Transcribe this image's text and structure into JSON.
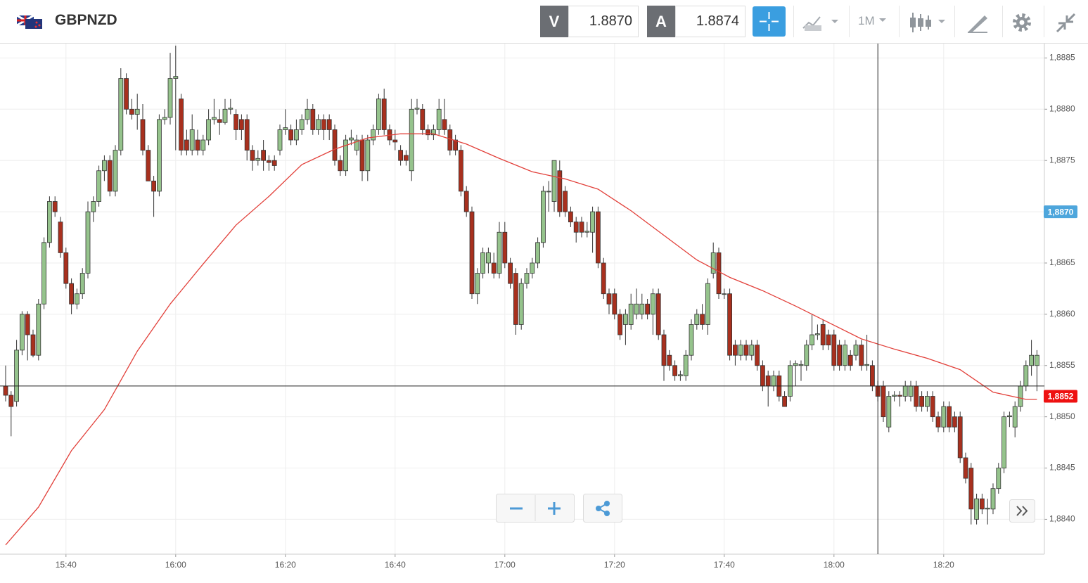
{
  "toolbar": {
    "symbol": "GBPNZD",
    "bid_label": "V",
    "bid": "1.8870",
    "ask_label": "A",
    "ask": "1.8874",
    "timeframe": "1M"
  },
  "chart_data": {
    "type": "candlestick",
    "grid": true,
    "ylim": [
      1.88366,
      1.88864
    ],
    "yticks": [
      {
        "value": 1.884,
        "label": "1,8840"
      },
      {
        "value": 1.8845,
        "label": "1,8845"
      },
      {
        "value": 1.885,
        "label": "1,8850"
      },
      {
        "value": 1.8855,
        "label": "1,8855"
      },
      {
        "value": 1.886,
        "label": "1,8860"
      },
      {
        "value": 1.8865,
        "label": "1,8865"
      },
      {
        "value": 1.887,
        "label": "1,8870"
      },
      {
        "value": 1.8875,
        "label": "1,8875"
      },
      {
        "value": 1.888,
        "label": "1,8880"
      },
      {
        "value": 1.8885,
        "label": "1,8885"
      }
    ],
    "xticks": [
      "15:40",
      "16:00",
      "16:20",
      "16:40",
      "17:00",
      "17:20",
      "17:40",
      "18:00",
      "18:20"
    ],
    "x": [
      "15:29",
      "15:30",
      "15:31",
      "15:32",
      "15:33",
      "15:34",
      "15:35",
      "15:36",
      "15:37",
      "15:38",
      "15:39",
      "15:40",
      "15:41",
      "15:42",
      "15:43",
      "15:44",
      "15:45",
      "15:46",
      "15:47",
      "15:48",
      "15:49",
      "15:50",
      "15:51",
      "15:52",
      "15:53",
      "15:54",
      "15:55",
      "15:56",
      "15:57",
      "15:58",
      "15:59",
      "16:00",
      "16:01",
      "16:02",
      "16:03",
      "16:04",
      "16:05",
      "16:06",
      "16:07",
      "16:08",
      "16:09",
      "16:10",
      "16:11",
      "16:12",
      "16:13",
      "16:14",
      "16:15",
      "16:16",
      "16:17",
      "16:18",
      "16:19",
      "16:20",
      "16:21",
      "16:22",
      "16:23",
      "16:24",
      "16:25",
      "16:26",
      "16:27",
      "16:28",
      "16:29",
      "16:30",
      "16:31",
      "16:32",
      "16:33",
      "16:34",
      "16:35",
      "16:36",
      "16:37",
      "16:38",
      "16:39",
      "16:40",
      "16:41",
      "16:42",
      "16:43",
      "16:44",
      "16:45",
      "16:46",
      "16:47",
      "16:48",
      "16:49",
      "16:50",
      "16:51",
      "16:52",
      "16:53",
      "16:54",
      "16:55",
      "16:56",
      "16:57",
      "16:58",
      "16:59",
      "17:00",
      "17:01",
      "17:02",
      "17:03",
      "17:04",
      "17:05",
      "17:06",
      "17:07",
      "17:08",
      "17:09",
      "17:10",
      "17:11",
      "17:12",
      "17:13",
      "17:14",
      "17:15",
      "17:16",
      "17:17",
      "17:18",
      "17:19",
      "17:20",
      "17:21",
      "17:22",
      "17:23",
      "17:24",
      "17:25",
      "17:26",
      "17:27",
      "17:28",
      "17:29",
      "17:30",
      "17:31",
      "17:32",
      "17:33",
      "17:34",
      "17:35",
      "17:36",
      "17:37",
      "17:38",
      "17:39",
      "17:40",
      "17:41",
      "17:42",
      "17:43",
      "17:44",
      "17:45",
      "17:46",
      "17:47",
      "17:48",
      "17:49",
      "17:50",
      "17:51",
      "17:52",
      "17:53",
      "17:54",
      "17:55",
      "17:56",
      "17:57",
      "17:58",
      "17:59",
      "18:00",
      "18:01",
      "18:02",
      "18:03",
      "18:04",
      "18:05",
      "18:06",
      "18:07",
      "18:08",
      "18:09",
      "18:10",
      "18:11",
      "18:12",
      "18:13",
      "18:14",
      "18:15",
      "18:16",
      "18:17",
      "18:18",
      "18:19",
      "18:20",
      "18:21",
      "18:22",
      "18:23",
      "18:24",
      "18:25",
      "18:26",
      "18:27",
      "18:28",
      "18:29",
      "18:30",
      "18:31",
      "18:32",
      "18:33",
      "18:34",
      "18:35",
      "18:36",
      "18:37"
    ],
    "series": [
      {
        "type": "candlestick",
        "up_color": "#95c38c",
        "down_color": "#a8301e",
        "edge_color": "#333333",
        "open": [
          1.8853,
          1.88521,
          1.88515,
          1.88565,
          1.886,
          1.8858,
          1.8856,
          1.8861,
          1.8867,
          1.8871,
          1.8869,
          1.8866,
          1.8863,
          1.8861,
          1.8862,
          1.8864,
          1.887,
          1.8871,
          1.8874,
          1.8875,
          1.8872,
          1.8876,
          1.8883,
          1.888,
          1.88795,
          1.8879,
          1.8876,
          1.8873,
          1.8872,
          1.8879,
          1.88792,
          1.8883,
          1.8881,
          1.8877,
          1.8876,
          1.8877,
          1.8876,
          1.8877,
          1.8879,
          1.8879,
          1.88787,
          1.888,
          1.88795,
          1.8879,
          1.8879,
          1.8876,
          1.8875,
          1.8876,
          1.8875,
          1.8875,
          1.8876,
          1.8878,
          1.8878,
          1.8877,
          1.8878,
          1.8879,
          1.888,
          1.8878,
          1.8879,
          1.8879,
          1.8878,
          1.8875,
          1.8874,
          1.8877,
          1.8876,
          1.8877,
          1.8874,
          1.8877,
          1.8878,
          1.8881,
          1.8878,
          1.8877,
          1.8876,
          1.88755,
          1.8874,
          1.888,
          1.888,
          1.8878,
          1.88775,
          1.8878,
          1.8879,
          1.8878,
          1.8877,
          1.8876,
          1.8872,
          1.887,
          1.8862,
          1.8864,
          1.8865,
          1.8865,
          1.8864,
          1.8868,
          1.8865,
          1.8864,
          1.8859,
          1.8863,
          1.8864,
          1.8865,
          1.8867,
          1.8872,
          1.8871,
          1.8874,
          1.8872,
          1.887,
          1.8869,
          1.8869,
          1.8868,
          1.8868,
          1.887,
          1.8865,
          1.8862,
          1.8862,
          1.886,
          1.8859,
          1.8859,
          1.886,
          1.886,
          1.8861,
          1.886,
          1.8862,
          1.8858,
          1.8856,
          1.8855,
          1.8854,
          1.8854,
          1.8856,
          1.8859,
          1.886,
          1.8859,
          1.8864,
          1.8866,
          1.8862,
          1.8862,
          1.8857,
          1.8856,
          1.8857,
          1.8856,
          1.8857,
          1.8855,
          1.8854,
          1.8853,
          1.8854,
          1.8852,
          1.8852,
          1.8855,
          1.8855,
          1.8855,
          1.8857,
          1.8858,
          1.8859,
          1.8858,
          1.8858,
          1.8857,
          1.8855,
          1.8856,
          1.8856,
          1.8857,
          1.8855,
          1.8855,
          1.8853,
          1.8853,
          1.8849,
          1.8852,
          1.88521,
          1.8852,
          1.8852,
          1.8853,
          1.8852,
          1.8851,
          1.8852,
          1.885,
          1.8849,
          1.8851,
          1.885,
          1.885,
          1.8846,
          1.8845,
          1.884,
          1.8842,
          1.8841,
          1.8841,
          1.8843,
          1.8845,
          1.885,
          1.8849,
          1.8851,
          1.8853,
          1.8855,
          1.8855
        ],
        "high": [
          1.8855,
          1.88525,
          1.88575,
          1.88603,
          1.88603,
          1.88585,
          1.88615,
          1.88675,
          1.88715,
          1.88715,
          1.88695,
          1.88665,
          1.88635,
          1.88625,
          1.88645,
          1.8871,
          1.88715,
          1.88745,
          1.88755,
          1.88755,
          1.88765,
          1.8884,
          1.88835,
          1.8881,
          1.88815,
          1.88805,
          1.88765,
          1.88735,
          1.88795,
          1.888,
          1.88855,
          1.88862,
          1.88815,
          1.8878,
          1.88795,
          1.8878,
          1.88775,
          1.888,
          1.8881,
          1.888,
          1.8881,
          1.8881,
          1.888,
          1.88795,
          1.88795,
          1.88765,
          1.8876,
          1.8877,
          1.88755,
          1.88755,
          1.88785,
          1.888,
          1.88785,
          1.8879,
          1.88795,
          1.8881,
          1.88805,
          1.88795,
          1.88795,
          1.88795,
          1.88785,
          1.88755,
          1.88775,
          1.8878,
          1.88775,
          1.88775,
          1.88775,
          1.88785,
          1.88815,
          1.8882,
          1.88785,
          1.8878,
          1.88765,
          1.8876,
          1.8881,
          1.8881,
          1.88805,
          1.88785,
          1.88785,
          1.8881,
          1.8881,
          1.88785,
          1.88775,
          1.88765,
          1.88725,
          1.88705,
          1.88645,
          1.88665,
          1.88665,
          1.8866,
          1.8869,
          1.8869,
          1.88655,
          1.88645,
          1.88635,
          1.88645,
          1.88655,
          1.88675,
          1.88725,
          1.8873,
          1.8875,
          1.8875,
          1.88725,
          1.88705,
          1.88695,
          1.88695,
          1.8869,
          1.88705,
          1.88705,
          1.88655,
          1.88625,
          1.88625,
          1.88605,
          1.88605,
          1.8862,
          1.88625,
          1.8862,
          1.88615,
          1.88625,
          1.88625,
          1.88585,
          1.88565,
          1.88555,
          1.88545,
          1.88565,
          1.88595,
          1.88605,
          1.8861,
          1.88635,
          1.8867,
          1.88665,
          1.88625,
          1.88625,
          1.88575,
          1.88575,
          1.88575,
          1.88575,
          1.88575,
          1.88555,
          1.88545,
          1.88545,
          1.88545,
          1.88525,
          1.88555,
          1.88555,
          1.88555,
          1.88575,
          1.886,
          1.8859,
          1.88595,
          1.88585,
          1.88585,
          1.88575,
          1.88575,
          1.88565,
          1.88575,
          1.88575,
          1.8858,
          1.88555,
          1.88535,
          1.88535,
          1.88525,
          1.88525,
          1.88525,
          1.88535,
          1.88535,
          1.88535,
          1.88525,
          1.88525,
          1.88525,
          1.88505,
          1.88515,
          1.88515,
          1.88505,
          1.88505,
          1.88465,
          1.88455,
          1.88425,
          1.88425,
          1.8842,
          1.88435,
          1.88455,
          1.88505,
          1.88505,
          1.88515,
          1.88535,
          1.88555,
          1.88575,
          1.88565
        ],
        "low": [
          1.88515,
          1.88481,
          1.8851,
          1.8856,
          1.88555,
          1.88558,
          1.88555,
          1.88605,
          1.88665,
          1.88695,
          1.88655,
          1.88625,
          1.886,
          1.88605,
          1.88615,
          1.88635,
          1.8869,
          1.88705,
          1.8873,
          1.88715,
          1.88715,
          1.88755,
          1.88795,
          1.8879,
          1.8878,
          1.88755,
          1.8873,
          1.88695,
          1.88715,
          1.88785,
          1.88785,
          1.8876,
          1.88755,
          1.88755,
          1.88755,
          1.88755,
          1.88755,
          1.88765,
          1.88785,
          1.88775,
          1.88785,
          1.88795,
          1.8877,
          1.8877,
          1.8875,
          1.8874,
          1.88745,
          1.8874,
          1.8874,
          1.8874,
          1.88755,
          1.88775,
          1.88765,
          1.88765,
          1.88775,
          1.88785,
          1.88775,
          1.88775,
          1.8877,
          1.8877,
          1.88745,
          1.88735,
          1.88735,
          1.88765,
          1.88755,
          1.8873,
          1.8873,
          1.88765,
          1.88775,
          1.88775,
          1.88765,
          1.8876,
          1.88745,
          1.88745,
          1.8873,
          1.88795,
          1.88775,
          1.8877,
          1.8877,
          1.88775,
          1.88775,
          1.88755,
          1.88755,
          1.88715,
          1.88695,
          1.88615,
          1.8861,
          1.88635,
          1.8864,
          1.88635,
          1.88635,
          1.88645,
          1.88625,
          1.8858,
          1.88585,
          1.88625,
          1.88635,
          1.88645,
          1.88665,
          1.887,
          1.887,
          1.88695,
          1.88695,
          1.88685,
          1.8867,
          1.88675,
          1.88675,
          1.8866,
          1.88645,
          1.88615,
          1.886,
          1.88595,
          1.88575,
          1.8857,
          1.88585,
          1.88595,
          1.88595,
          1.88595,
          1.8858,
          1.88575,
          1.88535,
          1.88545,
          1.88535,
          1.88535,
          1.88535,
          1.88555,
          1.88585,
          1.88585,
          1.8858,
          1.88635,
          1.88615,
          1.88615,
          1.88555,
          1.8855,
          1.88555,
          1.88555,
          1.88555,
          1.88545,
          1.88525,
          1.8851,
          1.88525,
          1.88515,
          1.8851,
          1.88515,
          1.8853,
          1.88535,
          1.88545,
          1.88565,
          1.88575,
          1.88565,
          1.88565,
          1.88545,
          1.88545,
          1.88545,
          1.88545,
          1.88555,
          1.88545,
          1.88545,
          1.88525,
          1.88515,
          1.88495,
          1.88485,
          1.88515,
          1.8851,
          1.88515,
          1.88515,
          1.88505,
          1.88505,
          1.88505,
          1.88495,
          1.88485,
          1.88485,
          1.88485,
          1.88485,
          1.88455,
          1.88435,
          1.88395,
          1.88395,
          1.88405,
          1.88395,
          1.88405,
          1.88425,
          1.88445,
          1.8849,
          1.8848,
          1.88505,
          1.88525,
          1.8854,
          1.88525
        ],
        "close": [
          1.88521,
          1.8851,
          1.88565,
          1.886,
          1.8858,
          1.8856,
          1.8861,
          1.8867,
          1.8871,
          1.887,
          1.8866,
          1.8863,
          1.8861,
          1.8862,
          1.8864,
          1.887,
          1.8871,
          1.8874,
          1.8875,
          1.8872,
          1.8876,
          1.8883,
          1.888,
          1.88795,
          1.888,
          1.8876,
          1.8873,
          1.8872,
          1.8879,
          1.88792,
          1.8883,
          1.88832,
          1.8876,
          1.8876,
          1.8878,
          1.8876,
          1.8877,
          1.8879,
          1.88792,
          1.88787,
          1.888,
          1.88801,
          1.8878,
          1.8878,
          1.8876,
          1.8875,
          1.88752,
          1.8875,
          1.88748,
          1.88745,
          1.8878,
          1.88782,
          1.8877,
          1.8878,
          1.8879,
          1.888,
          1.8878,
          1.8879,
          1.8878,
          1.8878,
          1.8875,
          1.8874,
          1.8877,
          1.88772,
          1.8877,
          1.8874,
          1.8877,
          1.8878,
          1.8881,
          1.8878,
          1.8877,
          1.88768,
          1.8875,
          1.8875,
          1.888,
          1.88801,
          1.8878,
          1.88775,
          1.8878,
          1.888,
          1.8878,
          1.8876,
          1.8876,
          1.8872,
          1.887,
          1.8862,
          1.8864,
          1.8866,
          1.8866,
          1.8864,
          1.8868,
          1.8865,
          1.8863,
          1.8859,
          1.8863,
          1.8864,
          1.8865,
          1.8867,
          1.8872,
          1.8872,
          1.8875,
          1.887,
          1.887,
          1.8869,
          1.8868,
          1.8868,
          1.88681,
          1.887,
          1.8865,
          1.8862,
          1.8861,
          1.886,
          1.8858,
          1.886,
          1.8861,
          1.8861,
          1.8861,
          1.886,
          1.8862,
          1.8858,
          1.8855,
          1.8855,
          1.8854,
          1.88541,
          1.8856,
          1.8859,
          1.886,
          1.8859,
          1.8863,
          1.8866,
          1.8862,
          1.8862,
          1.8856,
          1.8856,
          1.8857,
          1.8856,
          1.8857,
          1.8855,
          1.8853,
          1.8853,
          1.8854,
          1.8852,
          1.8851,
          1.8855,
          1.88552,
          1.88551,
          1.8857,
          1.8858,
          1.88581,
          1.8857,
          1.8857,
          1.8855,
          1.8855,
          1.8857,
          1.8855,
          1.8857,
          1.8855,
          1.88551,
          1.8853,
          1.8852,
          1.885,
          1.8852,
          1.88521,
          1.8852,
          1.8853,
          1.8853,
          1.8851,
          1.8851,
          1.8852,
          1.885,
          1.8849,
          1.8851,
          1.8849,
          1.8849,
          1.8846,
          1.8844,
          1.8841,
          1.8842,
          1.8841,
          1.88411,
          1.8843,
          1.8845,
          1.885,
          1.88501,
          1.8851,
          1.8853,
          1.8855,
          1.8856,
          1.8856
        ]
      },
      {
        "type": "line",
        "color": "#e2403a",
        "x": [
          "15:29",
          "15:35",
          "15:41",
          "15:47",
          "15:53",
          "15:59",
          "16:05",
          "16:11",
          "16:17",
          "16:23",
          "16:29",
          "16:35",
          "16:41",
          "16:47",
          "16:53",
          "16:59",
          "17:05",
          "17:11",
          "17:17",
          "17:23",
          "17:29",
          "17:35",
          "17:41",
          "17:47",
          "17:53",
          "17:59",
          "18:05",
          "18:11",
          "18:17",
          "18:23",
          "18:29",
          "18:35",
          "18:37"
        ],
        "values": [
          1.88375,
          1.88412,
          1.88467,
          1.88507,
          1.88564,
          1.8861,
          1.88649,
          1.88687,
          1.88715,
          1.88746,
          1.88761,
          1.88772,
          1.88776,
          1.88776,
          1.88766,
          1.88752,
          1.88739,
          1.88732,
          1.88722,
          1.88701,
          1.88677,
          1.88653,
          1.88636,
          1.88623,
          1.88608,
          1.88592,
          1.88576,
          1.88566,
          1.88557,
          1.88546,
          1.88524,
          1.88517,
          1.88517
        ]
      }
    ],
    "crosshair": {
      "x": "18:08",
      "y": 1.8853,
      "color": "#222222"
    },
    "price_markers": [
      {
        "value": 1.887,
        "label": "1,8870",
        "color": "#4ea6dc"
      },
      {
        "value": 1.8852,
        "label": "1,8852",
        "color": "#ee1111"
      }
    ]
  }
}
